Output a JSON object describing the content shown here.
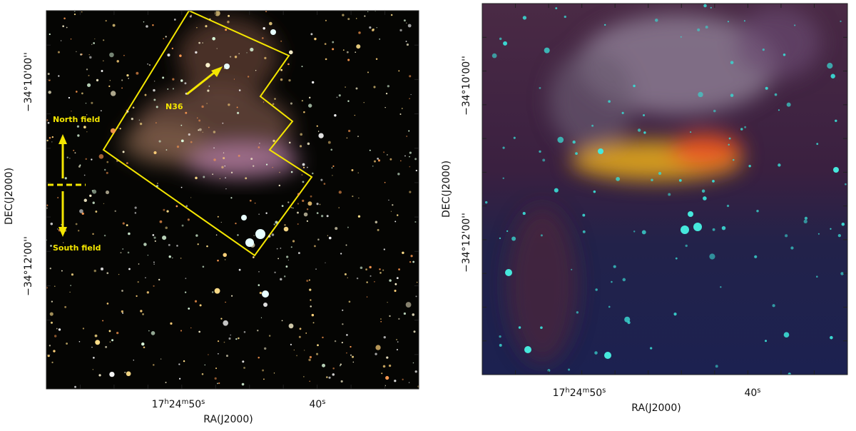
{
  "panels": [
    {
      "ylabel": "DEC(J2000)",
      "xlabel": "RA(J2000)",
      "yticks": [
        "−34°10'00''",
        "−34°12'00''"
      ],
      "xticks": [
        [
          "17",
          "h",
          "24",
          "m",
          "50",
          "s"
        ],
        [
          "40",
          "s"
        ]
      ],
      "annotations": {
        "north": "North field",
        "south": "South field",
        "source": "N36"
      }
    },
    {
      "ylabel": "DEC(J2000)",
      "xlabel": "RA(J2000)",
      "yticks": [
        "−34°10'00''",
        "−34°12'00''"
      ],
      "xticks": [
        [
          "17",
          "h",
          "24",
          "m",
          "50",
          "s"
        ],
        [
          "40",
          "s"
        ]
      ]
    }
  ]
}
